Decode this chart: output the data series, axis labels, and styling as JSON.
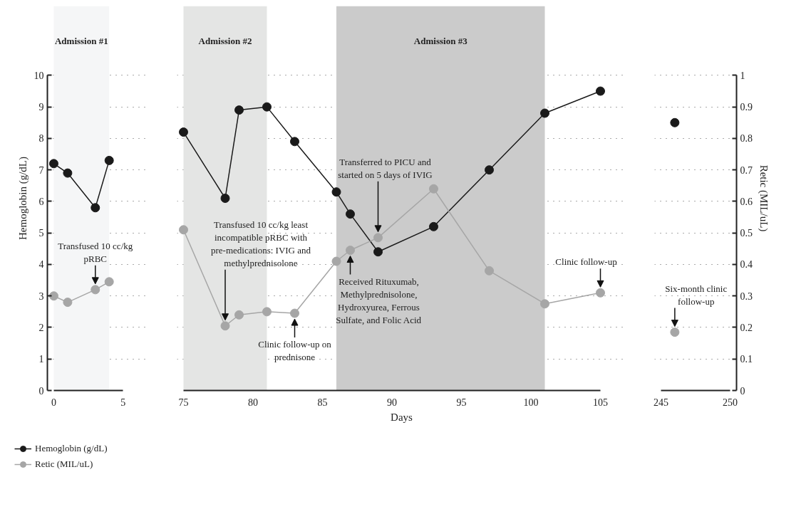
{
  "chart_data": [
    {
      "type": "line",
      "ylabel": "Hemoglobin (g/dL)",
      "x": [
        0,
        1,
        3,
        4
      ],
      "series": [
        {
          "name": "Hemoglobin (g/dL)",
          "color": "#1a1a1a",
          "values": [
            7.2,
            6.9,
            5.8,
            7.3
          ]
        },
        {
          "name": "Retic (MIL/uL)",
          "color": "#a6a6a6",
          "axis": "y2",
          "values": [
            0.3,
            0.28,
            0.32,
            0.345
          ]
        }
      ],
      "xlim": [
        0,
        5
      ],
      "xticks": [
        0,
        5
      ],
      "ylim": [
        0,
        10
      ],
      "yticks": [
        0,
        1,
        2,
        3,
        4,
        5,
        6,
        7,
        8,
        9,
        10
      ],
      "y2lim": [
        0,
        1
      ],
      "tick_labels": [
        "x",
        "y"
      ],
      "bands": [
        {
          "axis": "x",
          "from": 0,
          "to": 4,
          "label": "Admission #1",
          "color": "#f5f6f7"
        }
      ],
      "annotations": [
        {
          "text": "Transfused 10 cc/kg pRBC",
          "x": 3,
          "y": 3.2
        }
      ],
      "grid": "y",
      "legend": "bottom left",
      "marker": "circle",
      "line_style": "solid"
    },
    {
      "type": "line",
      "xlabel": "Days",
      "x": [
        75,
        78,
        79,
        81,
        83,
        86,
        87,
        89,
        93,
        97,
        101,
        105
      ],
      "series": [
        {
          "color": "#1a1a1a",
          "values": [
            8.2,
            6.1,
            8.9,
            9.0,
            7.9,
            6.3,
            5.6,
            4.4,
            5.2,
            7.0,
            8.8,
            9.5
          ]
        },
        {
          "color": "#a6a6a6",
          "axis": "y2",
          "values": [
            0.51,
            0.205,
            0.24,
            0.25,
            0.245,
            0.41,
            0.445,
            0.485,
            0.64,
            0.38,
            0.275,
            0.31
          ]
        }
      ],
      "xlim": [
        75,
        105
      ],
      "xticks": [
        75,
        80,
        85,
        90,
        95,
        100,
        105
      ],
      "ylim": [
        0,
        10
      ],
      "yticks": [
        0,
        1,
        2,
        3,
        4,
        5,
        6,
        7,
        8,
        9,
        10
      ],
      "y2lim": [
        0,
        1
      ],
      "bands": [
        {
          "axis": "x",
          "from": 75,
          "to": 81,
          "label": "Admission #2",
          "color": "#e4e5e4"
        },
        {
          "axis": "x",
          "from": 86,
          "to": 101,
          "label": "Admission #3",
          "color": "#cbcbcb"
        }
      ],
      "annotations": [
        {
          "text": "Transfused 10 cc/kg least incompatible pRBC with pre-medications: IVIG and methylprednisolone",
          "x": 78,
          "y": 2.05
        },
        {
          "text": "Clinic follow-up on prednisone",
          "x": 83,
          "y": 2.45
        },
        {
          "text": "Received Rituxumab, Methylprednisolone, Hydroxyurea, Ferrous Sulfate, and Folic Acid",
          "x": 87,
          "y": 4.45
        },
        {
          "text": "Transferred to PICU and started on 5 days of IVIG",
          "x": 89,
          "y": 4.85
        },
        {
          "text": "Clinic follow-up",
          "x": 105,
          "y": 3.1
        }
      ],
      "tick_labels": "x",
      "grid": "y",
      "marker": "circle",
      "line_style": "solid"
    },
    {
      "type": "line",
      "y2label": "Retic (MIL/uL)",
      "x": [
        246
      ],
      "series": [
        {
          "color": "#1a1a1a",
          "values": [
            8.5
          ]
        },
        {
          "color": "#a6a6a6",
          "axis": "y2",
          "values": [
            0.185
          ]
        }
      ],
      "xlim": [
        245,
        250
      ],
      "xticks": [
        245,
        250
      ],
      "ylim": [
        0,
        10
      ],
      "y2lim": [
        0,
        1
      ],
      "y2ticks": [
        0,
        0.1,
        0.2,
        0.3,
        0.4,
        0.5,
        0.6,
        0.7,
        0.8,
        0.9,
        1
      ],
      "annotations": [
        {
          "text": "Six-month clinic follow-up",
          "x": 246,
          "y": 1.85
        }
      ],
      "tick_labels": [
        "x",
        "y2"
      ],
      "grid": "y",
      "marker": "circle",
      "line_style": "solid"
    }
  ]
}
